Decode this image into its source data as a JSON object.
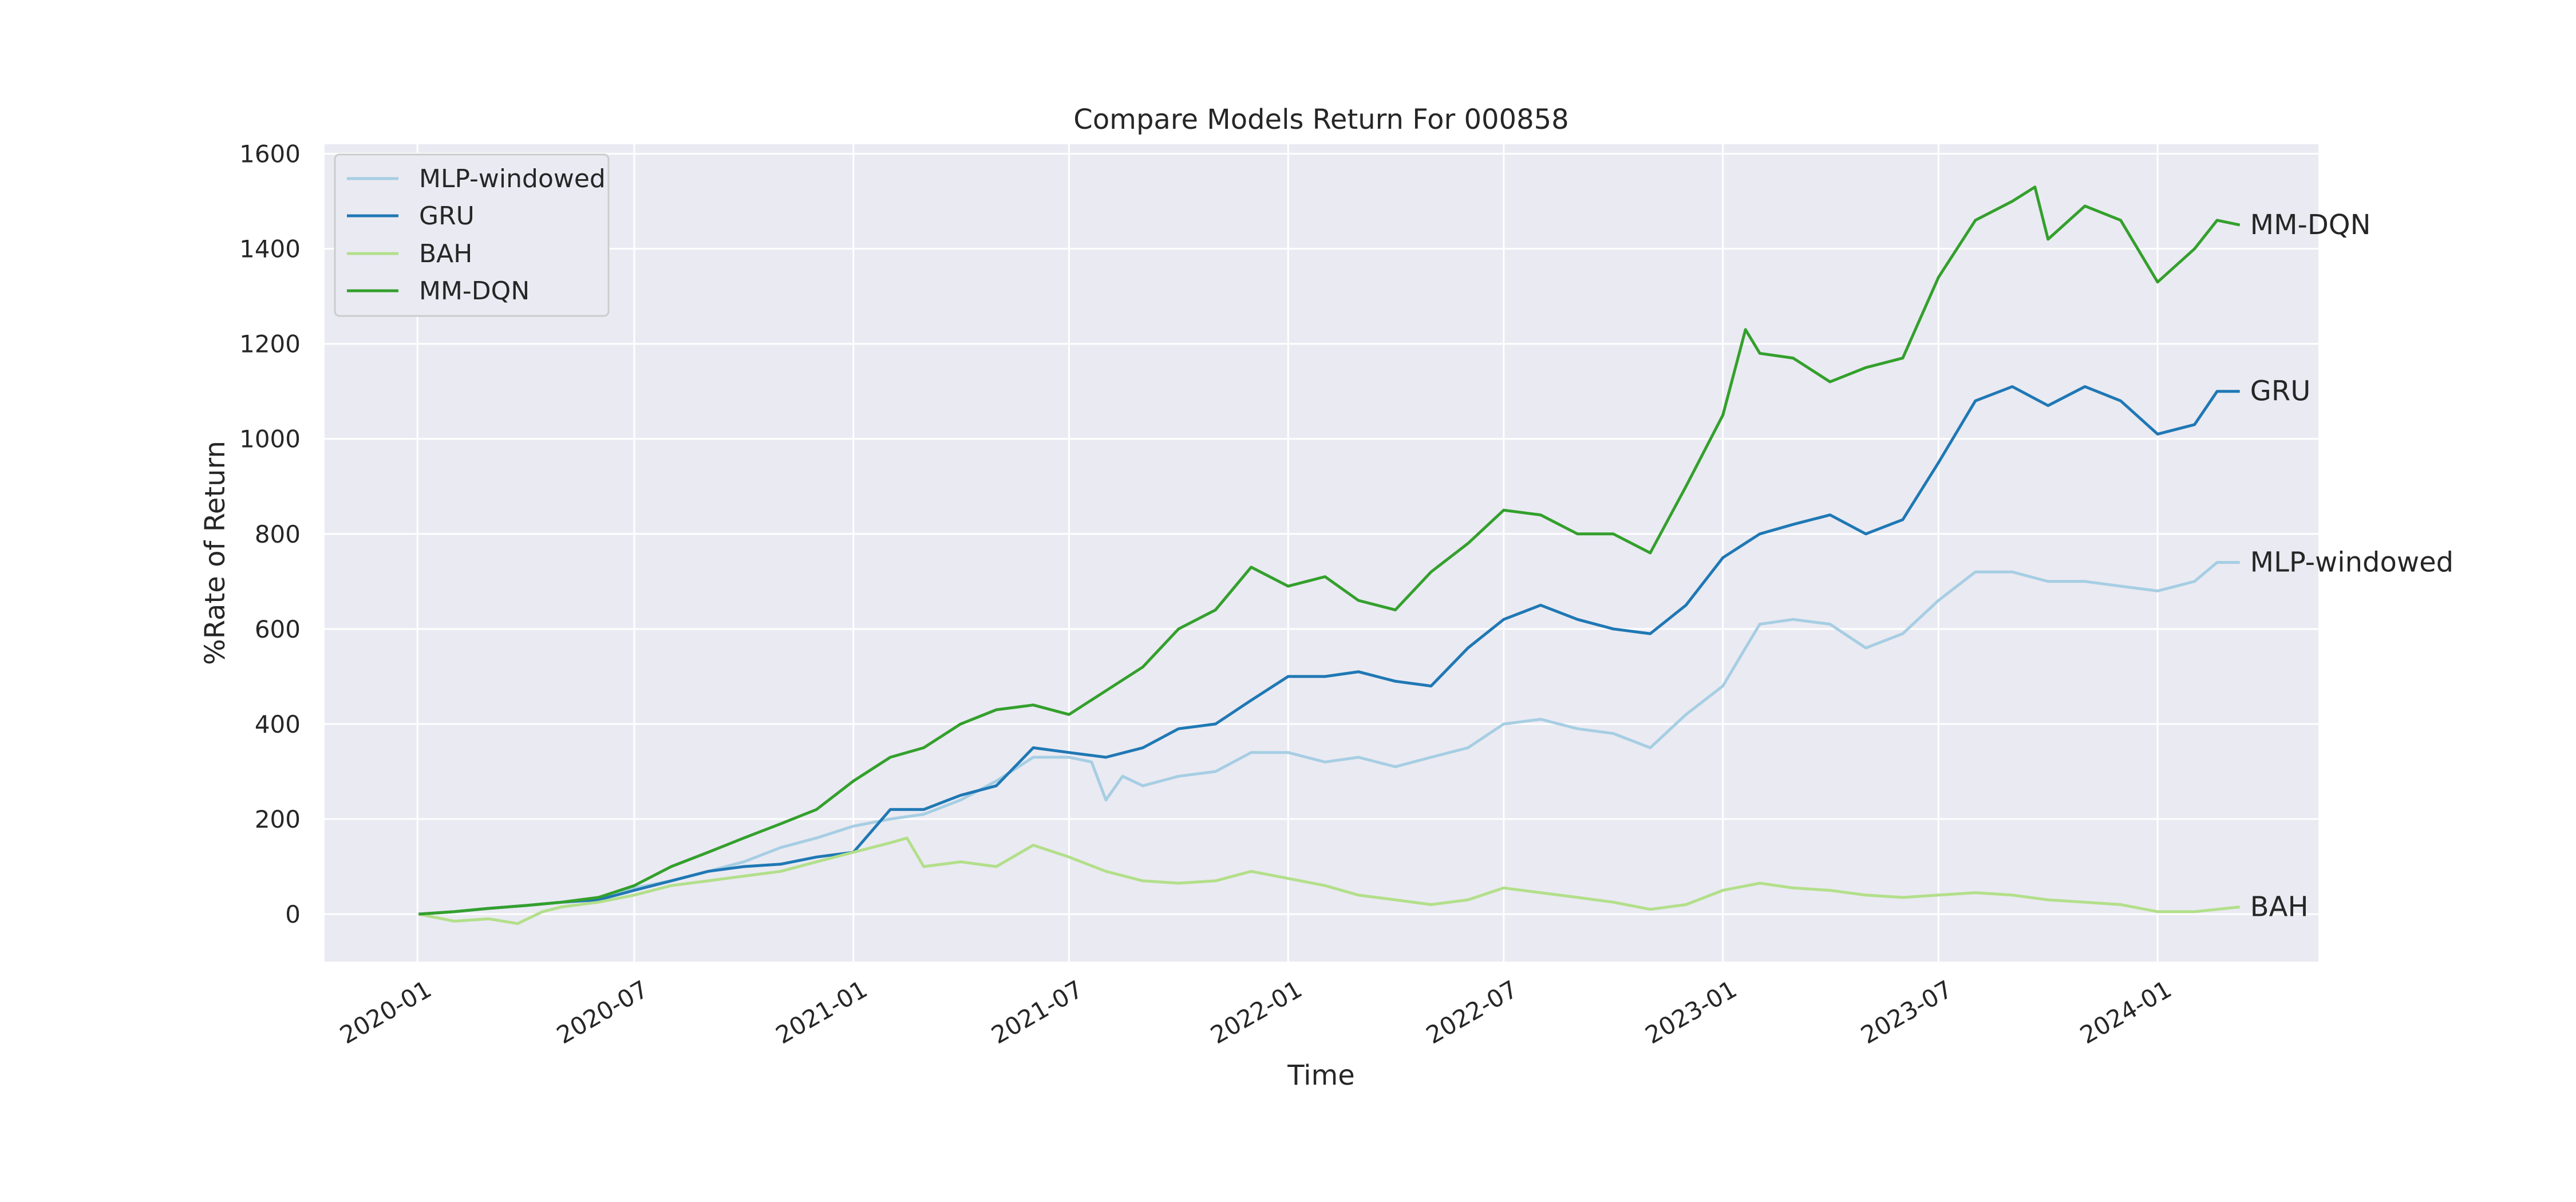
{
  "chart_data": {
    "type": "line",
    "title": "Compare Models Return For 000858",
    "xlabel": "Time",
    "ylabel": "%Rate of Return",
    "ylim": [
      -100,
      1620
    ],
    "xlim": [
      "2019-10-15",
      "2024-05-15"
    ],
    "grid": true,
    "legend_position": "top-left",
    "x_ticks": [
      "2020-01",
      "2020-07",
      "2021-01",
      "2021-07",
      "2022-01",
      "2022-07",
      "2023-01",
      "2023-07",
      "2024-01"
    ],
    "y_ticks": [
      0,
      200,
      400,
      600,
      800,
      1000,
      1200,
      1400,
      1600
    ],
    "series": [
      {
        "name": "MLP-windowed",
        "color": "#a6cee3",
        "end_label": "MLP-windowed",
        "points": [
          [
            "2020-01-02",
            0
          ],
          [
            "2020-02-01",
            5
          ],
          [
            "2020-03-01",
            12
          ],
          [
            "2020-04-01",
            18
          ],
          [
            "2020-05-01",
            25
          ],
          [
            "2020-06-01",
            35
          ],
          [
            "2020-07-01",
            55
          ],
          [
            "2020-08-01",
            70
          ],
          [
            "2020-09-01",
            90
          ],
          [
            "2020-10-01",
            110
          ],
          [
            "2020-11-01",
            140
          ],
          [
            "2020-12-01",
            160
          ],
          [
            "2021-01-01",
            185
          ],
          [
            "2021-02-01",
            200
          ],
          [
            "2021-03-01",
            210
          ],
          [
            "2021-04-01",
            240
          ],
          [
            "2021-05-01",
            280
          ],
          [
            "2021-06-01",
            330
          ],
          [
            "2021-07-01",
            330
          ],
          [
            "2021-07-20",
            320
          ],
          [
            "2021-08-01",
            240
          ],
          [
            "2021-08-15",
            290
          ],
          [
            "2021-09-01",
            270
          ],
          [
            "2021-10-01",
            290
          ],
          [
            "2021-11-01",
            300
          ],
          [
            "2021-12-01",
            340
          ],
          [
            "2022-01-01",
            340
          ],
          [
            "2022-02-01",
            320
          ],
          [
            "2022-03-01",
            330
          ],
          [
            "2022-04-01",
            310
          ],
          [
            "2022-05-01",
            330
          ],
          [
            "2022-06-01",
            350
          ],
          [
            "2022-07-01",
            400
          ],
          [
            "2022-08-01",
            410
          ],
          [
            "2022-09-01",
            390
          ],
          [
            "2022-10-01",
            380
          ],
          [
            "2022-11-01",
            350
          ],
          [
            "2022-12-01",
            420
          ],
          [
            "2023-01-01",
            480
          ],
          [
            "2023-01-20",
            560
          ],
          [
            "2023-02-01",
            610
          ],
          [
            "2023-03-01",
            620
          ],
          [
            "2023-04-01",
            610
          ],
          [
            "2023-05-01",
            560
          ],
          [
            "2023-06-01",
            590
          ],
          [
            "2023-07-01",
            660
          ],
          [
            "2023-08-01",
            720
          ],
          [
            "2023-09-01",
            720
          ],
          [
            "2023-10-01",
            700
          ],
          [
            "2023-11-01",
            700
          ],
          [
            "2023-12-01",
            690
          ],
          [
            "2024-01-01",
            680
          ],
          [
            "2024-02-01",
            700
          ],
          [
            "2024-02-20",
            740
          ],
          [
            "2024-03-10",
            740
          ]
        ]
      },
      {
        "name": "GRU",
        "color": "#1f78b4",
        "end_label": "GRU",
        "points": [
          [
            "2020-01-02",
            0
          ],
          [
            "2020-02-01",
            5
          ],
          [
            "2020-03-01",
            12
          ],
          [
            "2020-04-01",
            18
          ],
          [
            "2020-05-01",
            25
          ],
          [
            "2020-06-01",
            30
          ],
          [
            "2020-07-01",
            50
          ],
          [
            "2020-08-01",
            70
          ],
          [
            "2020-09-01",
            90
          ],
          [
            "2020-10-01",
            100
          ],
          [
            "2020-11-01",
            105
          ],
          [
            "2020-12-01",
            120
          ],
          [
            "2021-01-01",
            130
          ],
          [
            "2021-02-01",
            220
          ],
          [
            "2021-03-01",
            220
          ],
          [
            "2021-04-01",
            250
          ],
          [
            "2021-05-01",
            270
          ],
          [
            "2021-06-01",
            350
          ],
          [
            "2021-07-01",
            340
          ],
          [
            "2021-08-01",
            330
          ],
          [
            "2021-09-01",
            350
          ],
          [
            "2021-10-01",
            390
          ],
          [
            "2021-11-01",
            400
          ],
          [
            "2021-12-01",
            450
          ],
          [
            "2022-01-01",
            500
          ],
          [
            "2022-02-01",
            500
          ],
          [
            "2022-03-01",
            510
          ],
          [
            "2022-04-01",
            490
          ],
          [
            "2022-05-01",
            480
          ],
          [
            "2022-06-01",
            560
          ],
          [
            "2022-07-01",
            620
          ],
          [
            "2022-08-01",
            650
          ],
          [
            "2022-09-01",
            620
          ],
          [
            "2022-10-01",
            600
          ],
          [
            "2022-11-01",
            590
          ],
          [
            "2022-12-01",
            650
          ],
          [
            "2023-01-01",
            750
          ],
          [
            "2023-02-01",
            800
          ],
          [
            "2023-03-01",
            820
          ],
          [
            "2023-04-01",
            840
          ],
          [
            "2023-05-01",
            800
          ],
          [
            "2023-06-01",
            830
          ],
          [
            "2023-07-01",
            950
          ],
          [
            "2023-08-01",
            1080
          ],
          [
            "2023-09-01",
            1110
          ],
          [
            "2023-10-01",
            1070
          ],
          [
            "2023-11-01",
            1110
          ],
          [
            "2023-12-01",
            1080
          ],
          [
            "2024-01-01",
            1010
          ],
          [
            "2024-02-01",
            1030
          ],
          [
            "2024-02-20",
            1100
          ],
          [
            "2024-03-10",
            1100
          ]
        ]
      },
      {
        "name": "BAH",
        "color": "#b2df8a",
        "end_label": "BAH",
        "points": [
          [
            "2020-01-02",
            0
          ],
          [
            "2020-02-01",
            -15
          ],
          [
            "2020-03-01",
            -10
          ],
          [
            "2020-03-25",
            -20
          ],
          [
            "2020-04-15",
            5
          ],
          [
            "2020-05-01",
            15
          ],
          [
            "2020-06-01",
            25
          ],
          [
            "2020-07-01",
            40
          ],
          [
            "2020-08-01",
            60
          ],
          [
            "2020-09-01",
            70
          ],
          [
            "2020-10-01",
            80
          ],
          [
            "2020-11-01",
            90
          ],
          [
            "2020-12-01",
            110
          ],
          [
            "2021-01-01",
            130
          ],
          [
            "2021-02-01",
            150
          ],
          [
            "2021-02-15",
            160
          ],
          [
            "2021-03-01",
            100
          ],
          [
            "2021-04-01",
            110
          ],
          [
            "2021-05-01",
            100
          ],
          [
            "2021-06-01",
            145
          ],
          [
            "2021-07-01",
            120
          ],
          [
            "2021-08-01",
            90
          ],
          [
            "2021-09-01",
            70
          ],
          [
            "2021-10-01",
            65
          ],
          [
            "2021-11-01",
            70
          ],
          [
            "2021-12-01",
            90
          ],
          [
            "2022-01-01",
            75
          ],
          [
            "2022-02-01",
            60
          ],
          [
            "2022-03-01",
            40
          ],
          [
            "2022-04-01",
            30
          ],
          [
            "2022-05-01",
            20
          ],
          [
            "2022-06-01",
            30
          ],
          [
            "2022-07-01",
            55
          ],
          [
            "2022-08-01",
            45
          ],
          [
            "2022-09-01",
            35
          ],
          [
            "2022-10-01",
            25
          ],
          [
            "2022-11-01",
            10
          ],
          [
            "2022-12-01",
            20
          ],
          [
            "2023-01-01",
            50
          ],
          [
            "2023-02-01",
            65
          ],
          [
            "2023-03-01",
            55
          ],
          [
            "2023-04-01",
            50
          ],
          [
            "2023-05-01",
            40
          ],
          [
            "2023-06-01",
            35
          ],
          [
            "2023-07-01",
            40
          ],
          [
            "2023-08-01",
            45
          ],
          [
            "2023-09-01",
            40
          ],
          [
            "2023-10-01",
            30
          ],
          [
            "2023-11-01",
            25
          ],
          [
            "2023-12-01",
            20
          ],
          [
            "2024-01-01",
            5
          ],
          [
            "2024-02-01",
            5
          ],
          [
            "2024-03-10",
            15
          ]
        ]
      },
      {
        "name": "MM-DQN",
        "color": "#33a02c",
        "end_label": "MM-DQN",
        "points": [
          [
            "2020-01-02",
            0
          ],
          [
            "2020-02-01",
            5
          ],
          [
            "2020-03-01",
            12
          ],
          [
            "2020-04-01",
            18
          ],
          [
            "2020-05-01",
            25
          ],
          [
            "2020-06-01",
            35
          ],
          [
            "2020-07-01",
            60
          ],
          [
            "2020-08-01",
            100
          ],
          [
            "2020-09-01",
            130
          ],
          [
            "2020-10-01",
            160
          ],
          [
            "2020-11-01",
            190
          ],
          [
            "2020-12-01",
            220
          ],
          [
            "2021-01-01",
            280
          ],
          [
            "2021-02-01",
            330
          ],
          [
            "2021-03-01",
            350
          ],
          [
            "2021-04-01",
            400
          ],
          [
            "2021-05-01",
            430
          ],
          [
            "2021-06-01",
            440
          ],
          [
            "2021-07-01",
            420
          ],
          [
            "2021-08-01",
            470
          ],
          [
            "2021-09-01",
            520
          ],
          [
            "2021-10-01",
            600
          ],
          [
            "2021-11-01",
            640
          ],
          [
            "2021-12-01",
            730
          ],
          [
            "2022-01-01",
            690
          ],
          [
            "2022-02-01",
            710
          ],
          [
            "2022-03-01",
            660
          ],
          [
            "2022-04-01",
            640
          ],
          [
            "2022-05-01",
            720
          ],
          [
            "2022-06-01",
            780
          ],
          [
            "2022-07-01",
            850
          ],
          [
            "2022-08-01",
            840
          ],
          [
            "2022-09-01",
            800
          ],
          [
            "2022-10-01",
            800
          ],
          [
            "2022-11-01",
            760
          ],
          [
            "2022-12-01",
            900
          ],
          [
            "2023-01-01",
            1050
          ],
          [
            "2023-01-20",
            1230
          ],
          [
            "2023-02-01",
            1180
          ],
          [
            "2023-03-01",
            1170
          ],
          [
            "2023-04-01",
            1120
          ],
          [
            "2023-05-01",
            1150
          ],
          [
            "2023-06-01",
            1170
          ],
          [
            "2023-07-01",
            1340
          ],
          [
            "2023-08-01",
            1460
          ],
          [
            "2023-09-01",
            1500
          ],
          [
            "2023-09-20",
            1530
          ],
          [
            "2023-10-01",
            1420
          ],
          [
            "2023-11-01",
            1490
          ],
          [
            "2023-12-01",
            1460
          ],
          [
            "2024-01-01",
            1330
          ],
          [
            "2024-02-01",
            1400
          ],
          [
            "2024-02-20",
            1460
          ],
          [
            "2024-03-10",
            1450
          ]
        ]
      }
    ]
  }
}
